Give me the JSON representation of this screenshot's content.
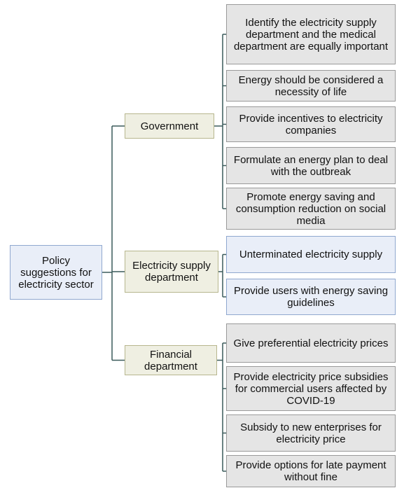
{
  "root": {
    "label": "Policy suggestions for electricity sector"
  },
  "branches": [
    {
      "label": "Government",
      "children": [
        {
          "label": "Identify the electricity supply department and the medical department are equally important"
        },
        {
          "label": "Energy should be considered a necessity of life"
        },
        {
          "label": "Provide incentives to electricity companies"
        },
        {
          "label": "Formulate an energy plan to deal with the outbreak"
        },
        {
          "label": "Promote energy saving and consumption reduction on social media"
        }
      ]
    },
    {
      "label": "Electricity supply department",
      "children": [
        {
          "label": "Unterminated electricity supply"
        },
        {
          "label": "Provide users with energy saving guidelines"
        }
      ]
    },
    {
      "label": "Financial department",
      "children": [
        {
          "label": "Give preferential electricity prices"
        },
        {
          "label": "Provide electricity price subsidies for commercial users affected by COVID-19"
        },
        {
          "label": "Subsidy to new enterprises for electricity price"
        },
        {
          "label": "Provide options for late payment without fine"
        }
      ]
    }
  ]
}
